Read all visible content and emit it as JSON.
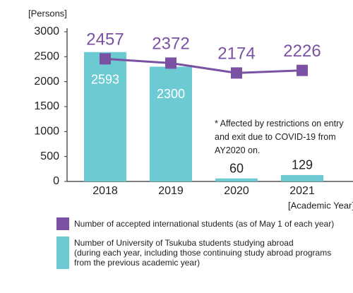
{
  "chart_data": {
    "type": "bar_line",
    "y_axis_label": "[Persons]",
    "x_axis_label": "[Academic Year]",
    "annotation": "* Affected by restrictions on entry\n  and exit due to COVID-19 from\n  AY2020 on.",
    "categories": [
      "2018",
      "2019",
      "2020",
      "2021"
    ],
    "ylim": [
      0,
      3000
    ],
    "yticks": [
      0,
      500,
      1000,
      1500,
      2000,
      2500,
      3000
    ],
    "series": [
      {
        "name": "Number of accepted international students (as of May 1 of each year)",
        "type": "line",
        "color": "#7b52a3",
        "values": [
          2457,
          2372,
          2174,
          2226
        ]
      },
      {
        "name": "Number of University of Tsukuba students studying abroad\n(during each year, including those continuing study abroad programs\nfrom the previous academic year)",
        "type": "bar",
        "color": "#6ccad3",
        "values": [
          2593,
          2300,
          60,
          129
        ]
      }
    ]
  }
}
